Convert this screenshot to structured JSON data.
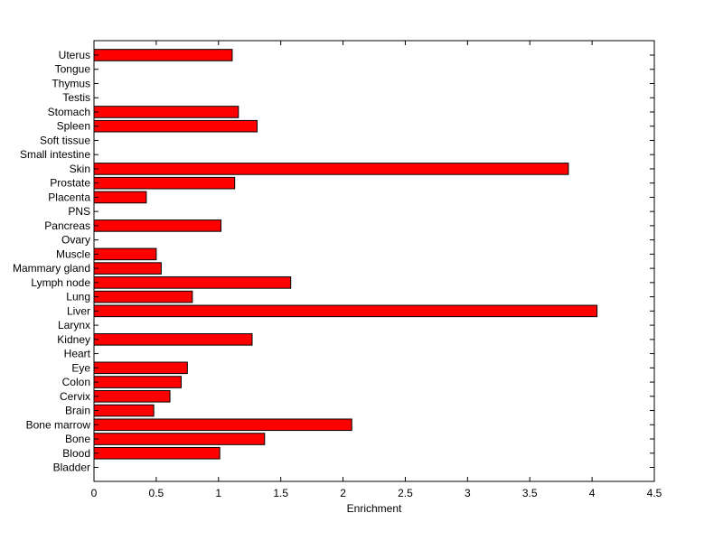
{
  "chart_data": {
    "type": "bar",
    "orientation": "horizontal",
    "xlabel": "Enrichment",
    "ylabel": "",
    "xlim": [
      0,
      4.5
    ],
    "xticks": [
      0,
      0.5,
      1,
      1.5,
      2,
      2.5,
      3,
      3.5,
      4,
      4.5
    ],
    "xtick_labels": [
      "0",
      "0.5",
      "1",
      "1.5",
      "2",
      "2.5",
      "3",
      "3.5",
      "4",
      "4.5"
    ],
    "grid": false,
    "bar_color": "#ff0000",
    "categories": [
      "Bladder",
      "Blood",
      "Bone",
      "Bone marrow",
      "Brain",
      "Cervix",
      "Colon",
      "Eye",
      "Heart",
      "Kidney",
      "Larynx",
      "Liver",
      "Lung",
      "Lymph node",
      "Mammary gland",
      "Muscle",
      "Ovary",
      "Pancreas",
      "PNS",
      "Placenta",
      "Prostate",
      "Skin",
      "Small intestine",
      "Soft tissue",
      "Spleen",
      "Stomach",
      "Testis",
      "Thymus",
      "Tongue",
      "Uterus"
    ],
    "values": [
      0,
      1.01,
      1.37,
      2.07,
      0.48,
      0.61,
      0.7,
      0.75,
      0,
      1.27,
      0,
      4.04,
      0.79,
      1.58,
      0.54,
      0.5,
      0,
      1.02,
      0,
      0.42,
      1.13,
      3.81,
      0,
      0,
      1.31,
      1.16,
      0,
      0,
      0,
      1.11
    ]
  }
}
